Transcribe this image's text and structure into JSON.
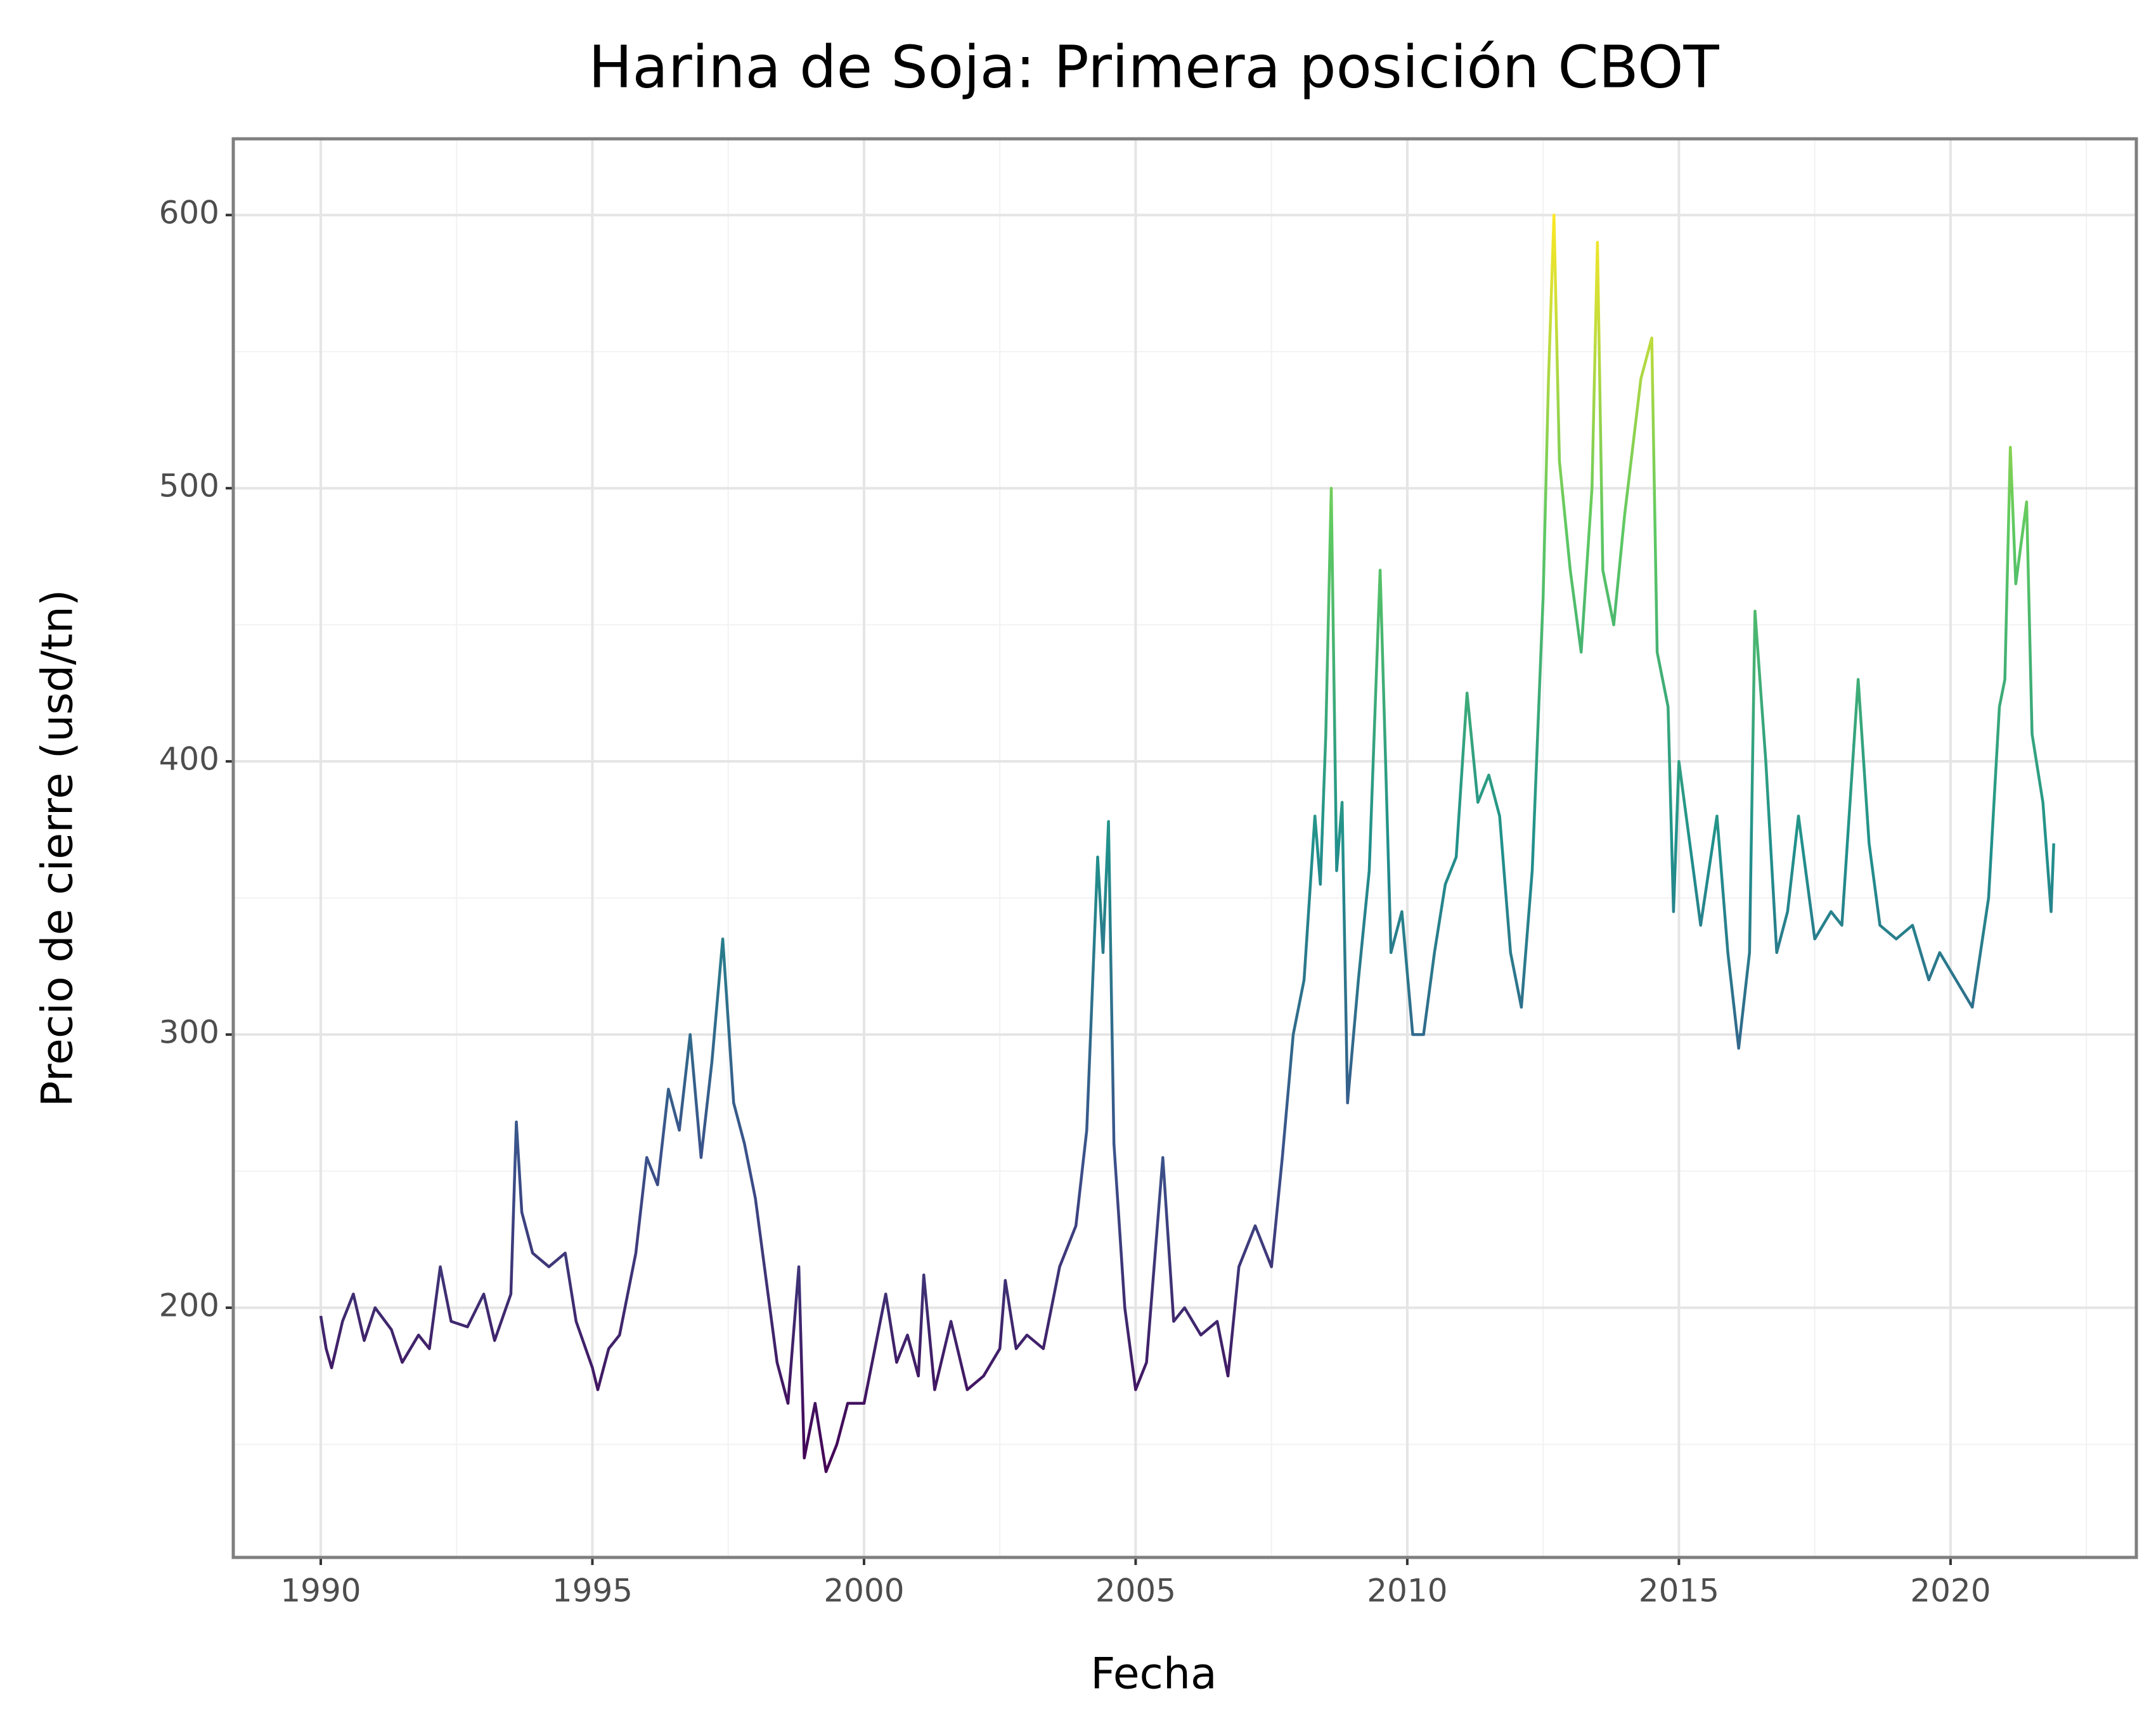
{
  "chart_data": {
    "type": "line",
    "title": "Harina de Soja: Primera posición CBOT",
    "x_label": "Fecha",
    "y_label": "Precio de cierre (usd/tn)",
    "x": [
      1990.0,
      1990.1,
      1990.2,
      1990.4,
      1990.6,
      1990.8,
      1991.0,
      1991.3,
      1991.5,
      1991.8,
      1992.0,
      1992.2,
      1992.4,
      1992.7,
      1993.0,
      1993.2,
      1993.5,
      1993.6,
      1993.7,
      1993.9,
      1994.2,
      1994.5,
      1994.7,
      1995.0,
      1995.1,
      1995.3,
      1995.5,
      1995.8,
      1996.0,
      1996.2,
      1996.4,
      1996.6,
      1996.8,
      1997.0,
      1997.2,
      1997.4,
      1997.6,
      1997.8,
      1998.0,
      1998.2,
      1998.4,
      1998.6,
      1998.8,
      1998.9,
      1999.1,
      1999.3,
      1999.5,
      1999.7,
      2000.0,
      2000.2,
      2000.4,
      2000.6,
      2000.8,
      2001.0,
      2001.1,
      2001.3,
      2001.6,
      2001.9,
      2002.2,
      2002.5,
      2002.6,
      2002.8,
      2003.0,
      2003.3,
      2003.6,
      2003.9,
      2004.1,
      2004.3,
      2004.4,
      2004.5,
      2004.6,
      2004.8,
      2005.0,
      2005.2,
      2005.4,
      2005.5,
      2005.7,
      2005.9,
      2006.2,
      2006.5,
      2006.7,
      2006.9,
      2007.2,
      2007.5,
      2007.7,
      2007.9,
      2008.1,
      2008.3,
      2008.4,
      2008.5,
      2008.6,
      2008.7,
      2008.8,
      2008.9,
      2009.1,
      2009.3,
      2009.5,
      2009.6,
      2009.7,
      2009.9,
      2010.1,
      2010.3,
      2010.5,
      2010.7,
      2010.9,
      2011.1,
      2011.3,
      2011.5,
      2011.7,
      2011.9,
      2012.1,
      2012.3,
      2012.5,
      2012.6,
      2012.7,
      2012.8,
      2013.0,
      2013.2,
      2013.4,
      2013.5,
      2013.6,
      2013.8,
      2014.0,
      2014.3,
      2014.5,
      2014.6,
      2014.8,
      2014.9,
      2015.0,
      2015.2,
      2015.4,
      2015.7,
      2015.9,
      2016.1,
      2016.3,
      2016.4,
      2016.6,
      2016.8,
      2017.0,
      2017.2,
      2017.5,
      2017.8,
      2018.0,
      2018.3,
      2018.5,
      2018.7,
      2019.0,
      2019.3,
      2019.6,
      2019.8,
      2020.1,
      2020.4,
      2020.7,
      2020.9,
      2021.0,
      2021.1,
      2021.2,
      2021.4,
      2021.5,
      2021.7,
      2021.85,
      2021.9
    ],
    "values": [
      197,
      185,
      178,
      195,
      205,
      188,
      200,
      192,
      180,
      190,
      185,
      215,
      195,
      193,
      205,
      188,
      205,
      268,
      235,
      220,
      215,
      220,
      195,
      178,
      170,
      185,
      190,
      220,
      255,
      245,
      280,
      265,
      300,
      255,
      290,
      335,
      275,
      260,
      240,
      210,
      180,
      165,
      215,
      145,
      165,
      140,
      150,
      165,
      165,
      185,
      205,
      180,
      190,
      175,
      212,
      170,
      195,
      170,
      175,
      185,
      210,
      185,
      190,
      185,
      215,
      230,
      265,
      365,
      330,
      378,
      260,
      200,
      170,
      180,
      230,
      255,
      195,
      200,
      190,
      195,
      175,
      215,
      230,
      215,
      255,
      300,
      320,
      380,
      355,
      410,
      500,
      360,
      385,
      275,
      320,
      360,
      470,
      400,
      330,
      345,
      300,
      300,
      330,
      355,
      365,
      425,
      385,
      395,
      380,
      330,
      310,
      360,
      460,
      540,
      600,
      510,
      470,
      440,
      500,
      590,
      470,
      450,
      490,
      540,
      555,
      440,
      420,
      345,
      400,
      370,
      340,
      380,
      330,
      295,
      330,
      455,
      400,
      330,
      345,
      380,
      335,
      345,
      340,
      430,
      370,
      340,
      335,
      340,
      320,
      330,
      320,
      310,
      350,
      420,
      430,
      515,
      465,
      495,
      410,
      385,
      345,
      370
    ],
    "colormap": [
      "#440154",
      "#3b528b",
      "#21918c",
      "#5ec962",
      "#fde725"
    ],
    "xlim": [
      1988.39,
      2023.42
    ],
    "ylim": [
      108.6,
      627.9
    ],
    "xticks": [
      1990,
      1995,
      2000,
      2005,
      2010,
      2015,
      2020
    ],
    "yticks": [
      200,
      300,
      400,
      500,
      600
    ],
    "grid": true,
    "minor_grid": true
  }
}
